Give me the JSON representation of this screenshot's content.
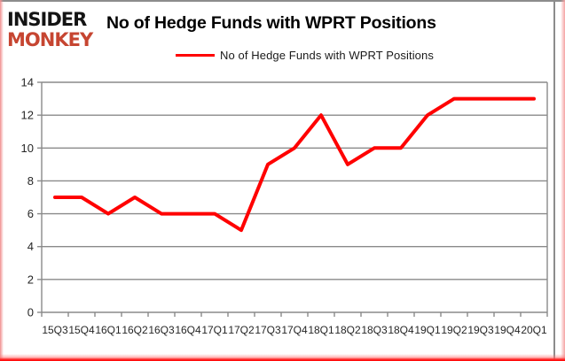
{
  "branding": {
    "logo_line1": "INSIDER",
    "logo_line2": "MONKEY"
  },
  "header": {
    "title": "No of Hedge Funds with WPRT Positions"
  },
  "legend": {
    "label": "No of Hedge Funds with WPRT Positions"
  },
  "colors": {
    "series_red": "#ff0000",
    "grid_gray": "#8a8a8a",
    "axis_text": "#262626",
    "logo_black": "#141414",
    "logo_red": "#c64531",
    "frame_gray": "#8c8c8c",
    "edge_pink": "#f08f8f",
    "edge_red": "#ff0000"
  },
  "chart_data": {
    "type": "line",
    "title": "No of Hedge Funds with WPRT Positions",
    "categories": [
      "15Q3",
      "15Q4",
      "16Q1",
      "16Q2",
      "16Q3",
      "16Q4",
      "17Q1",
      "17Q2",
      "17Q3",
      "17Q4",
      "18Q1",
      "18Q2",
      "18Q3",
      "18Q4",
      "19Q1",
      "19Q2",
      "19Q3",
      "19Q4",
      "20Q1"
    ],
    "series": [
      {
        "name": "No of Hedge Funds with WPRT Positions",
        "color": "#ff0000",
        "values": [
          7,
          7,
          6,
          7,
          6,
          6,
          6,
          5,
          9,
          10,
          12,
          9,
          10,
          10,
          12,
          13,
          13,
          13,
          13
        ]
      }
    ],
    "xlabel": "",
    "ylabel": "",
    "ylim": [
      0,
      14
    ],
    "yticks": [
      0,
      2,
      4,
      6,
      8,
      10,
      12,
      14
    ],
    "grid": true,
    "legend_position": "top"
  }
}
